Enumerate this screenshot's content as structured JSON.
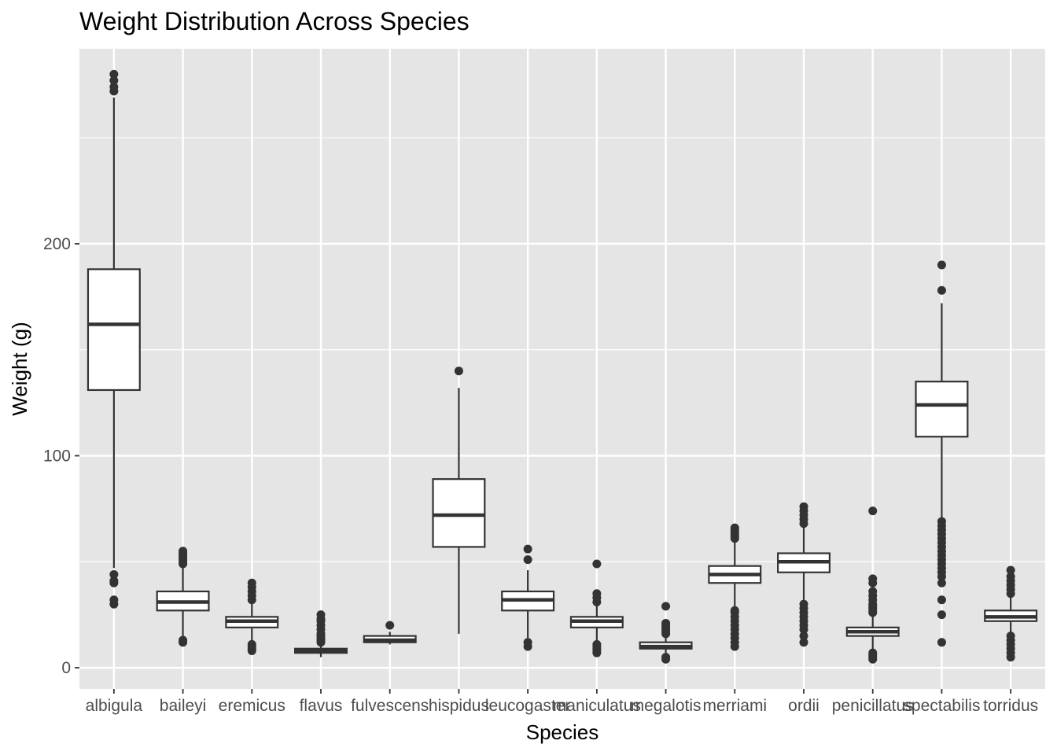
{
  "chart_data": {
    "type": "boxplot",
    "title": "Weight Distribution Across Species",
    "xlabel": "Species",
    "ylabel": "Weight (g)",
    "ylim": [
      -10,
      292
    ],
    "yticks": [
      0,
      100,
      200
    ],
    "grid": true,
    "legend": "none",
    "colors": {
      "panel": "#e5e5e5",
      "grid": "#ffffff",
      "box_fill": "#ffffff",
      "box_stroke": "#333333",
      "outlier": "#333333",
      "tick_text": "#4d4d4d"
    },
    "series": [
      {
        "category": "albigula",
        "lower_whisker": 47,
        "q1": 131,
        "median": 162,
        "q3": 188,
        "upper_whisker": 269,
        "outliers": [
          30,
          32,
          40,
          41,
          44,
          272,
          274,
          277,
          280
        ]
      },
      {
        "category": "baileyi",
        "lower_whisker": 14,
        "q1": 27,
        "median": 31,
        "q3": 36,
        "upper_whisker": 48,
        "outliers": [
          12,
          13,
          49,
          50,
          51,
          52,
          53,
          54,
          55
        ]
      },
      {
        "category": "eremicus",
        "lower_whisker": 12,
        "q1": 19,
        "median": 22,
        "q3": 24,
        "upper_whisker": 31,
        "outliers": [
          8,
          9,
          10,
          11,
          32,
          34,
          36,
          38,
          40
        ]
      },
      {
        "category": "flavus",
        "lower_whisker": 5,
        "q1": 7,
        "median": 8,
        "q3": 9,
        "upper_whisker": 11,
        "outliers": [
          12,
          13,
          14,
          15,
          16,
          18,
          20,
          22,
          23,
          25
        ]
      },
      {
        "category": "fulvescens",
        "lower_whisker": 11,
        "q1": 12,
        "median": 13,
        "q3": 15,
        "upper_whisker": 17,
        "outliers": [
          20
        ]
      },
      {
        "category": "hispidus",
        "lower_whisker": 16,
        "q1": 57,
        "median": 72,
        "q3": 89,
        "upper_whisker": 132,
        "outliers": [
          140
        ]
      },
      {
        "category": "leucogaster",
        "lower_whisker": 14,
        "q1": 27,
        "median": 32,
        "q3": 36,
        "upper_whisker": 46,
        "outliers": [
          10,
          12,
          51,
          56
        ]
      },
      {
        "category": "maniculatus",
        "lower_whisker": 13,
        "q1": 19,
        "median": 22,
        "q3": 24,
        "upper_whisker": 30,
        "outliers": [
          7,
          8,
          9,
          10,
          11,
          31,
          33,
          35,
          49
        ]
      },
      {
        "category": "megalotis",
        "lower_whisker": 6,
        "q1": 9,
        "median": 10,
        "q3": 12,
        "upper_whisker": 15,
        "outliers": [
          4,
          5,
          16,
          17,
          18,
          19,
          20,
          21,
          29
        ]
      },
      {
        "category": "merriami",
        "lower_whisker": 28,
        "q1": 40,
        "median": 44,
        "q3": 48,
        "upper_whisker": 60,
        "outliers": [
          10,
          12,
          14,
          16,
          18,
          20,
          22,
          24,
          26,
          27,
          61,
          62,
          63,
          64,
          65,
          66
        ]
      },
      {
        "category": "ordii",
        "lower_whisker": 32,
        "q1": 45,
        "median": 50,
        "q3": 54,
        "upper_whisker": 67,
        "outliers": [
          12,
          15,
          18,
          20,
          22,
          24,
          26,
          28,
          30,
          68,
          70,
          72,
          74,
          76
        ]
      },
      {
        "category": "penicillatus",
        "lower_whisker": 8,
        "q1": 15,
        "median": 17,
        "q3": 19,
        "upper_whisker": 25,
        "outliers": [
          4,
          5,
          6,
          7,
          26,
          27,
          28,
          29,
          30,
          32,
          34,
          36,
          40,
          42,
          74
        ]
      },
      {
        "category": "spectabilis",
        "lower_whisker": 70,
        "q1": 109,
        "median": 124,
        "q3": 135,
        "upper_whisker": 172,
        "outliers": [
          12,
          25,
          32,
          40,
          43,
          45,
          47,
          49,
          51,
          53,
          55,
          57,
          59,
          61,
          63,
          65,
          67,
          69,
          178,
          190
        ]
      },
      {
        "category": "torridus",
        "lower_whisker": 16,
        "q1": 22,
        "median": 24,
        "q3": 27,
        "upper_whisker": 34,
        "outliers": [
          5,
          7,
          9,
          11,
          13,
          15,
          35,
          37,
          39,
          41,
          43,
          46
        ]
      }
    ]
  }
}
